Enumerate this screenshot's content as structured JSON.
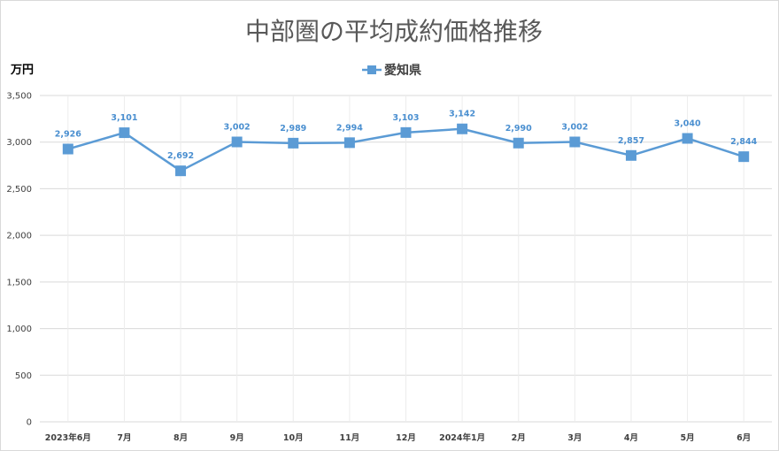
{
  "chart_data": {
    "type": "line",
    "title": "中部圏の平均成約価格推移",
    "ylabel": "万円",
    "xlabel": "",
    "ylim": [
      0,
      3500
    ],
    "yticks": [
      0,
      500,
      1000,
      1500,
      2000,
      2500,
      3000,
      3500
    ],
    "ytick_labels": [
      "0",
      "500",
      "1,000",
      "1,500",
      "2,000",
      "2,500",
      "3,000",
      "3,500"
    ],
    "categories": [
      "2023年6月",
      "7月",
      "8月",
      "9月",
      "10月",
      "11月",
      "12月",
      "2024年1月",
      "2月",
      "3月",
      "4月",
      "5月",
      "6月"
    ],
    "series": [
      {
        "name": "愛知県",
        "color": "#5b9bd5",
        "marker": "square",
        "values": [
          2926,
          3101,
          2692,
          3002,
          2989,
          2994,
          3103,
          3142,
          2990,
          3002,
          2857,
          3040,
          2844
        ],
        "value_labels": [
          "2,926",
          "3,101",
          "2,692",
          "3,002",
          "2,989",
          "2,994",
          "3,103",
          "3,142",
          "2,990",
          "3,002",
          "2,857",
          "3,040",
          "2,844"
        ]
      }
    ],
    "legend": "top-center",
    "grid": true
  }
}
